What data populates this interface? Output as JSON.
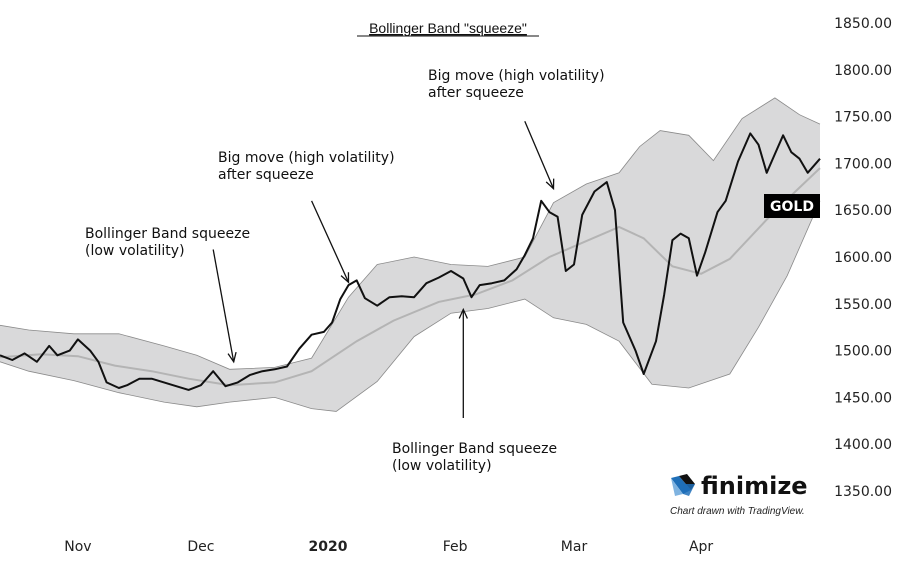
{
  "chart_data": {
    "type": "line",
    "title": "Bollinger Band \"squeeze\"",
    "ylim": [
      1350,
      1850
    ],
    "yticks": [
      1350,
      1400,
      1450,
      1500,
      1550,
      1600,
      1650,
      1700,
      1750,
      1800,
      1850
    ],
    "ytick_labels": [
      "1350.00",
      "1400.00",
      "1450.00",
      "1500.00",
      "1550.00",
      "1600.00",
      "1650.00",
      "1700.00",
      "1750.00",
      "1800.00",
      "1850.00"
    ],
    "x_range": [
      "2019-10-13",
      "2020-04-30"
    ],
    "xticks": [
      {
        "date": "2019-11-01",
        "label": "Nov",
        "bold": false
      },
      {
        "date": "2019-12-01",
        "label": "Dec",
        "bold": false
      },
      {
        "date": "2020-01-01",
        "label": "2020",
        "bold": true
      },
      {
        "date": "2020-02-01",
        "label": "Feb",
        "bold": false
      },
      {
        "date": "2020-03-01",
        "label": "Mar",
        "bold": false
      },
      {
        "date": "2020-04-01",
        "label": "Apr",
        "bold": false
      }
    ],
    "grid": false,
    "colors": {
      "price": "#111111",
      "middle_band": "#b4b4b4",
      "band_fill": "#d9d9da",
      "band_edge": "#8a8a8a",
      "label_bg": "#000000"
    },
    "series": [
      {
        "name": "GOLD",
        "role": "price",
        "points": [
          [
            "2019-10-13",
            1495
          ],
          [
            "2019-10-16",
            1490
          ],
          [
            "2019-10-19",
            1497
          ],
          [
            "2019-10-22",
            1488
          ],
          [
            "2019-10-25",
            1505
          ],
          [
            "2019-10-27",
            1495
          ],
          [
            "2019-10-30",
            1500
          ],
          [
            "2019-11-01",
            1512
          ],
          [
            "2019-11-04",
            1500
          ],
          [
            "2019-11-06",
            1488
          ],
          [
            "2019-11-08",
            1466
          ],
          [
            "2019-11-11",
            1460
          ],
          [
            "2019-11-13",
            1463
          ],
          [
            "2019-11-16",
            1470
          ],
          [
            "2019-11-19",
            1470
          ],
          [
            "2019-11-22",
            1466
          ],
          [
            "2019-11-25",
            1462
          ],
          [
            "2019-11-28",
            1458
          ],
          [
            "2019-12-01",
            1463
          ],
          [
            "2019-12-04",
            1478
          ],
          [
            "2019-12-07",
            1462
          ],
          [
            "2019-12-10",
            1466
          ],
          [
            "2019-12-13",
            1474
          ],
          [
            "2019-12-16",
            1478
          ],
          [
            "2019-12-19",
            1480
          ],
          [
            "2019-12-22",
            1483
          ],
          [
            "2019-12-25",
            1502
          ],
          [
            "2019-12-28",
            1517
          ],
          [
            "2019-12-31",
            1520
          ],
          [
            "2020-01-02",
            1530
          ],
          [
            "2020-01-04",
            1555
          ],
          [
            "2020-01-06",
            1570
          ],
          [
            "2020-01-08",
            1575
          ],
          [
            "2020-01-10",
            1556
          ],
          [
            "2020-01-13",
            1548
          ],
          [
            "2020-01-16",
            1557
          ],
          [
            "2020-01-19",
            1558
          ],
          [
            "2020-01-22",
            1557
          ],
          [
            "2020-01-25",
            1572
          ],
          [
            "2020-01-28",
            1578
          ],
          [
            "2020-01-31",
            1585
          ],
          [
            "2020-02-03",
            1577
          ],
          [
            "2020-02-05",
            1557
          ],
          [
            "2020-02-07",
            1570
          ],
          [
            "2020-02-10",
            1572
          ],
          [
            "2020-02-13",
            1575
          ],
          [
            "2020-02-16",
            1587
          ],
          [
            "2020-02-18",
            1602
          ],
          [
            "2020-02-20",
            1620
          ],
          [
            "2020-02-22",
            1660
          ],
          [
            "2020-02-24",
            1648
          ],
          [
            "2020-02-26",
            1643
          ],
          [
            "2020-02-28",
            1585
          ],
          [
            "2020-03-01",
            1592
          ],
          [
            "2020-03-03",
            1645
          ],
          [
            "2020-03-06",
            1670
          ],
          [
            "2020-03-09",
            1680
          ],
          [
            "2020-03-11",
            1650
          ],
          [
            "2020-03-13",
            1530
          ],
          [
            "2020-03-16",
            1500
          ],
          [
            "2020-03-18",
            1475
          ],
          [
            "2020-03-21",
            1510
          ],
          [
            "2020-03-23",
            1560
          ],
          [
            "2020-03-25",
            1618
          ],
          [
            "2020-03-27",
            1625
          ],
          [
            "2020-03-29",
            1620
          ],
          [
            "2020-03-31",
            1580
          ],
          [
            "2020-04-02",
            1605
          ],
          [
            "2020-04-05",
            1648
          ],
          [
            "2020-04-07",
            1660
          ],
          [
            "2020-04-10",
            1702
          ],
          [
            "2020-04-13",
            1732
          ],
          [
            "2020-04-15",
            1720
          ],
          [
            "2020-04-17",
            1690
          ],
          [
            "2020-04-19",
            1710
          ],
          [
            "2020-04-21",
            1730
          ],
          [
            "2020-04-23",
            1712
          ],
          [
            "2020-04-25",
            1705
          ],
          [
            "2020-04-27",
            1690
          ],
          [
            "2020-04-30",
            1705
          ]
        ]
      },
      {
        "name": "",
        "role": "middle_band",
        "points": [
          [
            "2019-10-13",
            1493
          ],
          [
            "2019-10-23",
            1496
          ],
          [
            "2019-11-01",
            1494
          ],
          [
            "2019-11-10",
            1484
          ],
          [
            "2019-11-19",
            1478
          ],
          [
            "2019-11-28",
            1470
          ],
          [
            "2019-12-08",
            1463
          ],
          [
            "2019-12-19",
            1466
          ],
          [
            "2019-12-28",
            1478
          ],
          [
            "2020-01-08",
            1510
          ],
          [
            "2020-01-17",
            1532
          ],
          [
            "2020-01-28",
            1552
          ],
          [
            "2020-02-06",
            1560
          ],
          [
            "2020-02-15",
            1575
          ],
          [
            "2020-02-24",
            1600
          ],
          [
            "2020-03-04",
            1617
          ],
          [
            "2020-03-12",
            1632
          ],
          [
            "2020-03-18",
            1620
          ],
          [
            "2020-03-25",
            1590
          ],
          [
            "2020-04-01",
            1582
          ],
          [
            "2020-04-08",
            1598
          ],
          [
            "2020-04-17",
            1640
          ],
          [
            "2020-04-24",
            1670
          ],
          [
            "2020-04-30",
            1695
          ]
        ]
      },
      {
        "name": "",
        "role": "upper_band",
        "points": [
          [
            "2019-10-13",
            1527
          ],
          [
            "2019-10-20",
            1522
          ],
          [
            "2019-10-31",
            1518
          ],
          [
            "2019-11-11",
            1518
          ],
          [
            "2019-11-22",
            1505
          ],
          [
            "2019-11-30",
            1495
          ],
          [
            "2019-12-08",
            1480
          ],
          [
            "2019-12-19",
            1482
          ],
          [
            "2019-12-28",
            1492
          ],
          [
            "2020-01-06",
            1557
          ],
          [
            "2020-01-13",
            1592
          ],
          [
            "2020-01-22",
            1600
          ],
          [
            "2020-01-31",
            1592
          ],
          [
            "2020-02-09",
            1590
          ],
          [
            "2020-02-18",
            1600
          ],
          [
            "2020-02-25",
            1658
          ],
          [
            "2020-03-04",
            1678
          ],
          [
            "2020-03-12",
            1690
          ],
          [
            "2020-03-17",
            1718
          ],
          [
            "2020-03-22",
            1735
          ],
          [
            "2020-03-29",
            1730
          ],
          [
            "2020-04-04",
            1703
          ],
          [
            "2020-04-11",
            1748
          ],
          [
            "2020-04-19",
            1770
          ],
          [
            "2020-04-25",
            1752
          ],
          [
            "2020-04-30",
            1742
          ]
        ]
      },
      {
        "name": "",
        "role": "lower_band",
        "points": [
          [
            "2019-10-13",
            1488
          ],
          [
            "2019-10-20",
            1478
          ],
          [
            "2019-10-31",
            1468
          ],
          [
            "2019-11-11",
            1455
          ],
          [
            "2019-11-22",
            1445
          ],
          [
            "2019-11-30",
            1440
          ],
          [
            "2019-12-08",
            1445
          ],
          [
            "2019-12-19",
            1450
          ],
          [
            "2019-12-28",
            1438
          ],
          [
            "2020-01-03",
            1435
          ],
          [
            "2020-01-13",
            1467
          ],
          [
            "2020-01-22",
            1515
          ],
          [
            "2020-01-31",
            1540
          ],
          [
            "2020-02-09",
            1545
          ],
          [
            "2020-02-18",
            1555
          ],
          [
            "2020-02-25",
            1535
          ],
          [
            "2020-03-04",
            1528
          ],
          [
            "2020-03-12",
            1510
          ],
          [
            "2020-03-20",
            1464
          ],
          [
            "2020-03-29",
            1460
          ],
          [
            "2020-04-08",
            1475
          ],
          [
            "2020-04-15",
            1525
          ],
          [
            "2020-04-22",
            1580
          ],
          [
            "2020-04-30",
            1660
          ]
        ]
      }
    ],
    "annotations": [
      {
        "id": "ann-squeeze-1",
        "lines": [
          "Bollinger Band squeeze",
          "(low volatility)"
        ],
        "arrow_from": [
          "2019-12-04",
          1608
        ],
        "arrow_to": [
          "2019-12-09",
          1488
        ]
      },
      {
        "id": "ann-bigmove-1",
        "lines": [
          "Big move (high volatility)",
          "after squeeze"
        ],
        "arrow_from": [
          "2019-12-28",
          1660
        ],
        "arrow_to": [
          "2020-01-06",
          1573
        ]
      },
      {
        "id": "ann-squeeze-2",
        "lines": [
          "Bollinger Band squeeze",
          "(low volatility)"
        ],
        "arrow_from": [
          "2020-02-03",
          1428
        ],
        "arrow_to": [
          "2020-02-03",
          1544
        ]
      },
      {
        "id": "ann-bigmove-2",
        "lines": [
          "Big move (high volatility)",
          "after squeeze"
        ],
        "arrow_from": [
          "2020-02-18",
          1745
        ],
        "arrow_to": [
          "2020-02-25",
          1673
        ]
      }
    ],
    "last_price_label": "GOLD"
  },
  "brand": {
    "name": "finimize",
    "credit": "Chart drawn with TradingView."
  }
}
